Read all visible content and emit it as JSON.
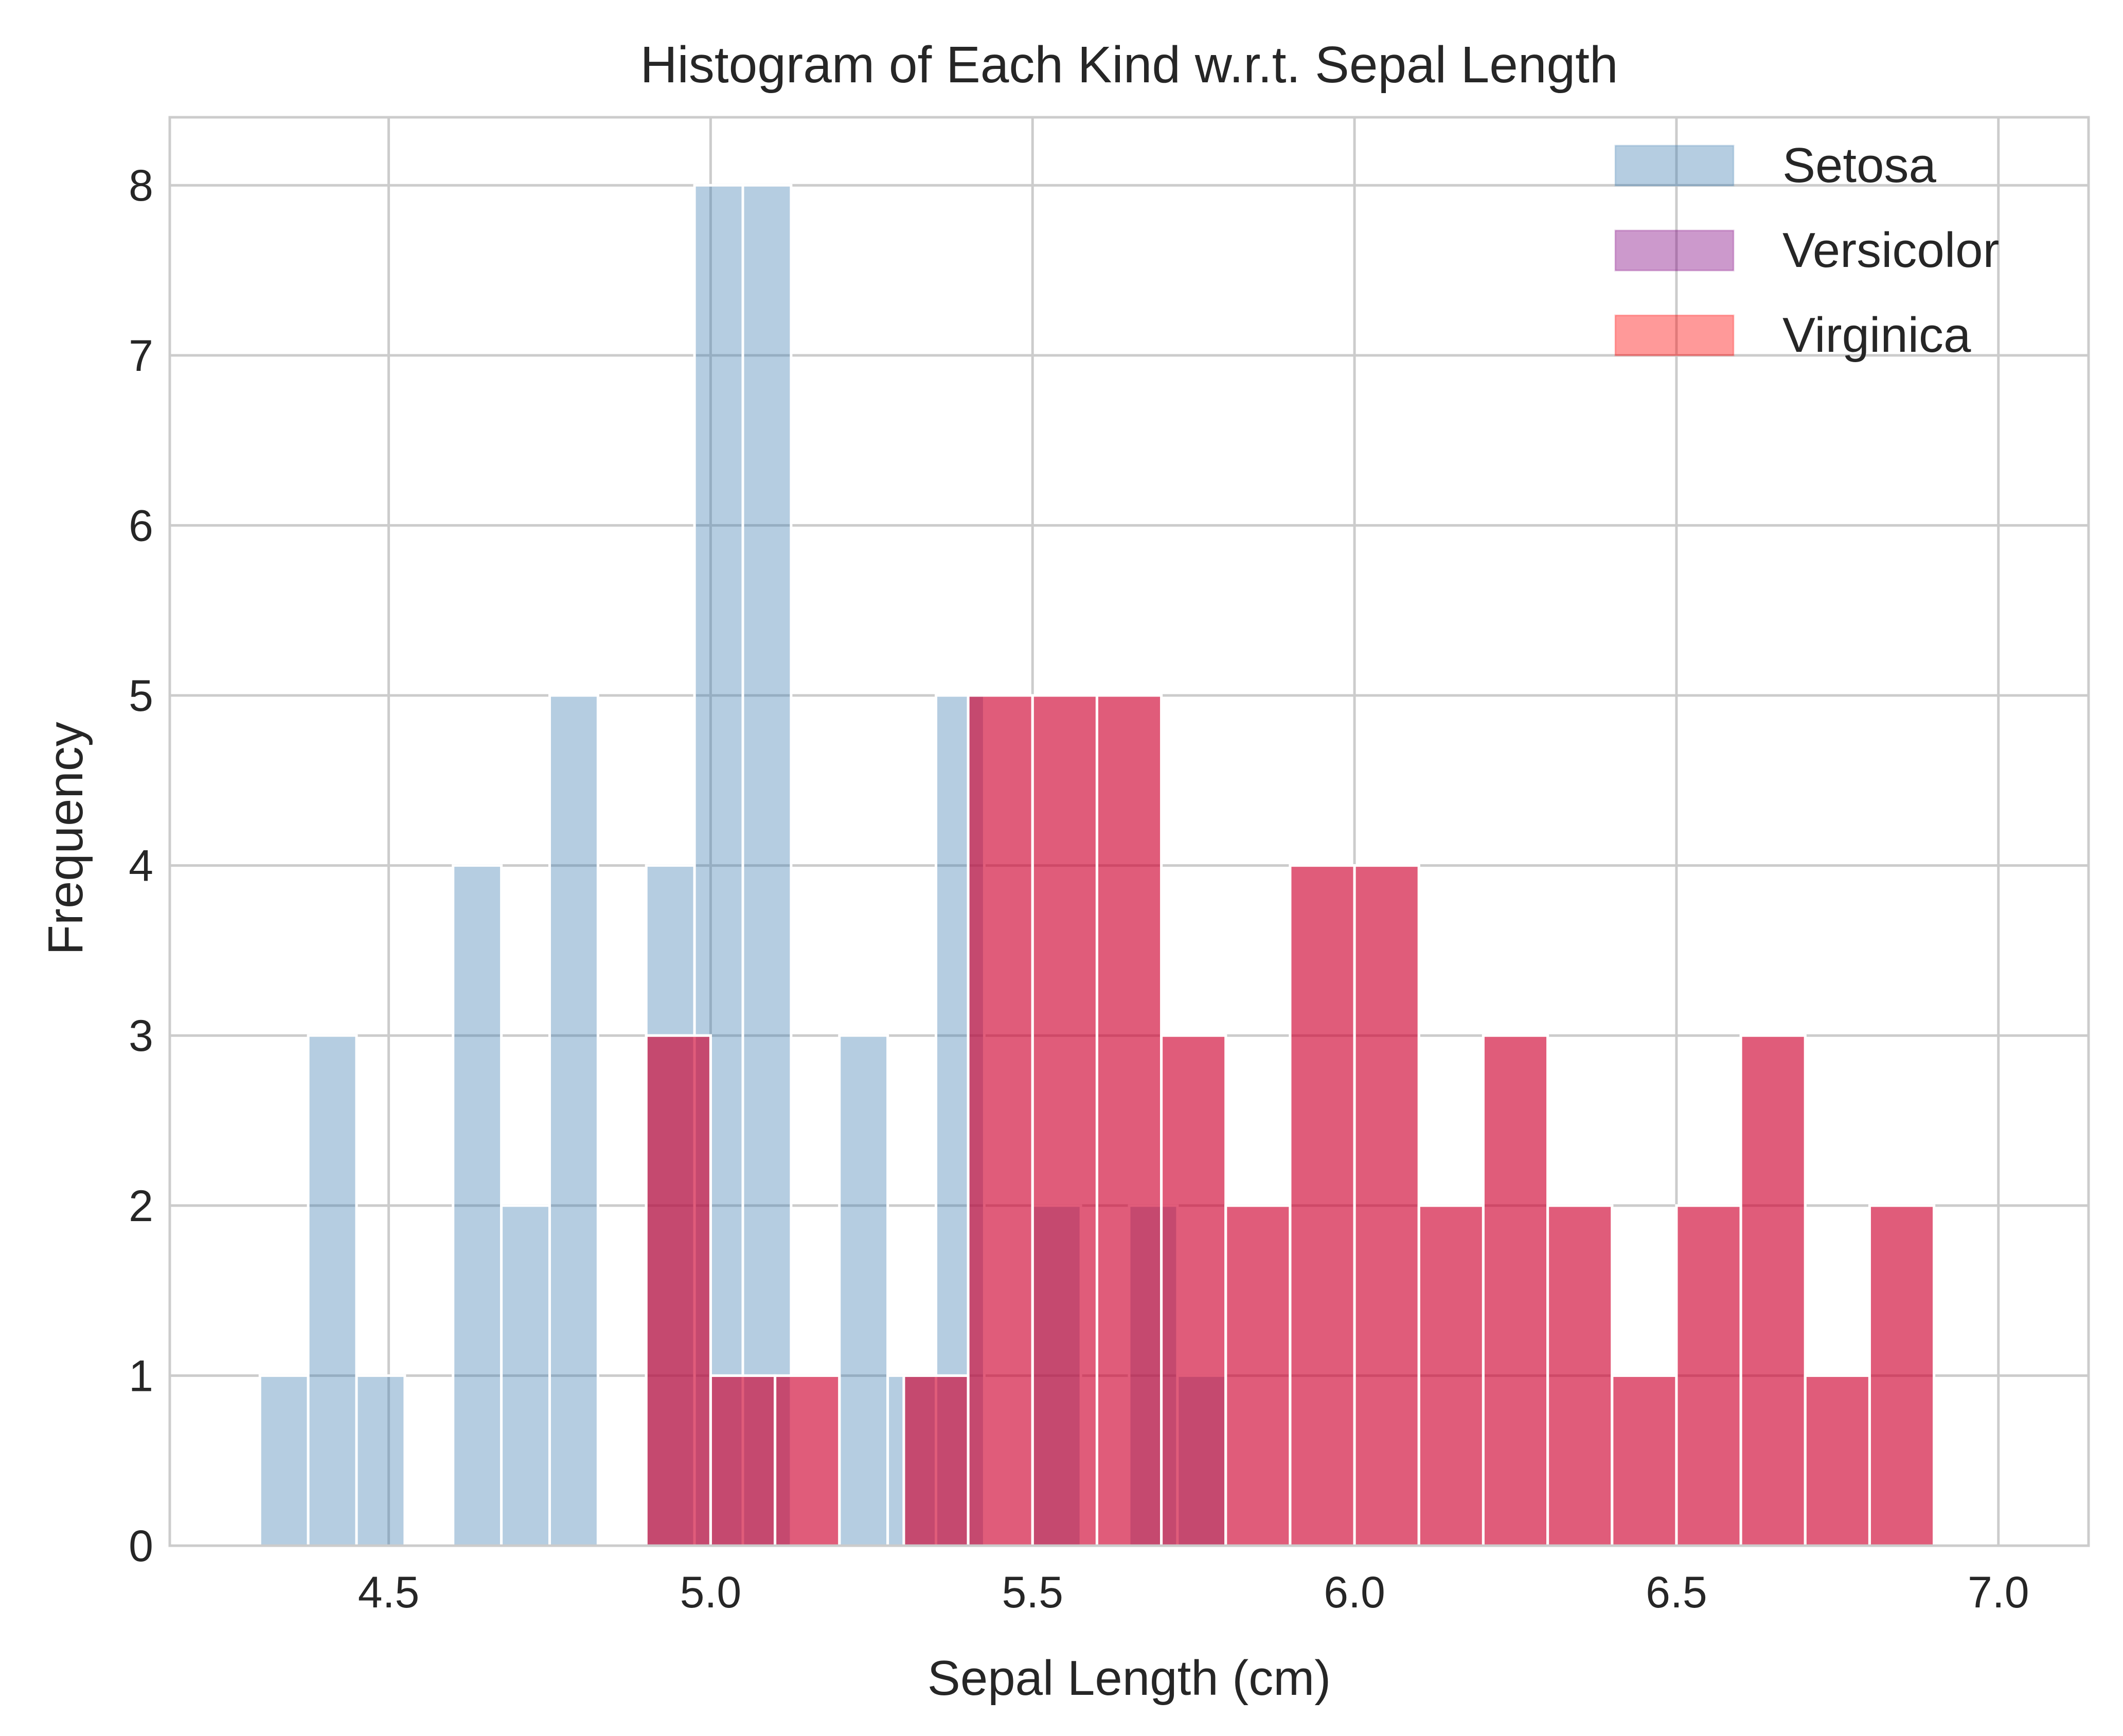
{
  "chart_data": {
    "type": "bar",
    "subtype": "histogram",
    "title": "Histogram of Each Kind w.r.t. Sepal Length",
    "xlabel": "Sepal Length (cm)",
    "ylabel": "Frequency",
    "xlim": [
      4.16,
      7.14
    ],
    "ylim": [
      0,
      8.4
    ],
    "xticks": [
      "4.5",
      "5.0",
      "5.5",
      "6.0",
      "6.5",
      "7.0"
    ],
    "yticks": [
      "0",
      "1",
      "2",
      "3",
      "4",
      "5",
      "6",
      "7",
      "8"
    ],
    "grid": true,
    "legend_position": "top-right",
    "series": [
      {
        "name": "Setosa",
        "color": "#4682b4",
        "opacity": 0.4,
        "bins": [
          {
            "x0": 4.3,
            "x1": 4.375,
            "value": 1
          },
          {
            "x0": 4.375,
            "x1": 4.45,
            "value": 3
          },
          {
            "x0": 4.45,
            "x1": 4.525,
            "value": 1
          },
          {
            "x0": 4.525,
            "x1": 4.6,
            "value": 0
          },
          {
            "x0": 4.6,
            "x1": 4.675,
            "value": 4
          },
          {
            "x0": 4.675,
            "x1": 4.75,
            "value": 2
          },
          {
            "x0": 4.75,
            "x1": 4.825,
            "value": 5
          },
          {
            "x0": 4.825,
            "x1": 4.9,
            "value": 0
          },
          {
            "x0": 4.9,
            "x1": 4.975,
            "value": 4
          },
          {
            "x0": 4.975,
            "x1": 5.05,
            "value": 8
          },
          {
            "x0": 5.05,
            "x1": 5.125,
            "value": 8
          },
          {
            "x0": 5.125,
            "x1": 5.2,
            "value": 0
          },
          {
            "x0": 5.2,
            "x1": 5.275,
            "value": 3
          },
          {
            "x0": 5.275,
            "x1": 5.35,
            "value": 1
          },
          {
            "x0": 5.35,
            "x1": 5.425,
            "value": 5
          },
          {
            "x0": 5.425,
            "x1": 5.5,
            "value": 0
          },
          {
            "x0": 5.5,
            "x1": 5.575,
            "value": 2
          },
          {
            "x0": 5.575,
            "x1": 5.65,
            "value": 0
          },
          {
            "x0": 5.65,
            "x1": 5.725,
            "value": 2
          },
          {
            "x0": 5.725,
            "x1": 5.8,
            "value": 1
          }
        ]
      },
      {
        "name": "Versicolor",
        "color": "#800080",
        "opacity": 0.4,
        "bins": [
          {
            "x0": 4.9,
            "x1": 5.0,
            "value": 3
          },
          {
            "x0": 5.0,
            "x1": 5.1,
            "value": 1
          },
          {
            "x0": 5.1,
            "x1": 5.2,
            "value": 1
          },
          {
            "x0": 5.2,
            "x1": 5.3,
            "value": 0
          },
          {
            "x0": 5.3,
            "x1": 5.4,
            "value": 1
          },
          {
            "x0": 5.4,
            "x1": 5.5,
            "value": 5
          },
          {
            "x0": 5.5,
            "x1": 5.6,
            "value": 5
          },
          {
            "x0": 5.6,
            "x1": 5.7,
            "value": 5
          },
          {
            "x0": 5.7,
            "x1": 5.8,
            "value": 3
          },
          {
            "x0": 5.8,
            "x1": 5.9,
            "value": 2
          },
          {
            "x0": 5.9,
            "x1": 6.0,
            "value": 4
          },
          {
            "x0": 6.0,
            "x1": 6.1,
            "value": 4
          },
          {
            "x0": 6.1,
            "x1": 6.2,
            "value": 2
          },
          {
            "x0": 6.2,
            "x1": 6.3,
            "value": 3
          },
          {
            "x0": 6.3,
            "x1": 6.4,
            "value": 2
          },
          {
            "x0": 6.4,
            "x1": 6.5,
            "value": 1
          },
          {
            "x0": 6.5,
            "x1": 6.6,
            "value": 2
          },
          {
            "x0": 6.6,
            "x1": 6.7,
            "value": 3
          },
          {
            "x0": 6.7,
            "x1": 6.8,
            "value": 1
          },
          {
            "x0": 6.8,
            "x1": 6.9,
            "value": 2
          }
        ]
      },
      {
        "name": "Virginica",
        "color": "#ff0000",
        "opacity": 0.4,
        "bins": [
          {
            "x0": 4.9,
            "x1": 5.0,
            "value": 3
          },
          {
            "x0": 5.0,
            "x1": 5.1,
            "value": 1
          },
          {
            "x0": 5.1,
            "x1": 5.2,
            "value": 1
          },
          {
            "x0": 5.2,
            "x1": 5.3,
            "value": 0
          },
          {
            "x0": 5.3,
            "x1": 5.4,
            "value": 1
          },
          {
            "x0": 5.4,
            "x1": 5.5,
            "value": 5
          },
          {
            "x0": 5.5,
            "x1": 5.6,
            "value": 5
          },
          {
            "x0": 5.6,
            "x1": 5.7,
            "value": 5
          },
          {
            "x0": 5.7,
            "x1": 5.8,
            "value": 3
          },
          {
            "x0": 5.8,
            "x1": 5.9,
            "value": 2
          },
          {
            "x0": 5.9,
            "x1": 6.0,
            "value": 4
          },
          {
            "x0": 6.0,
            "x1": 6.1,
            "value": 4
          },
          {
            "x0": 6.1,
            "x1": 6.2,
            "value": 2
          },
          {
            "x0": 6.2,
            "x1": 6.3,
            "value": 3
          },
          {
            "x0": 6.3,
            "x1": 6.4,
            "value": 2
          },
          {
            "x0": 6.4,
            "x1": 6.5,
            "value": 1
          },
          {
            "x0": 6.5,
            "x1": 6.6,
            "value": 2
          },
          {
            "x0": 6.6,
            "x1": 6.7,
            "value": 3
          },
          {
            "x0": 6.7,
            "x1": 6.8,
            "value": 1
          },
          {
            "x0": 6.8,
            "x1": 6.9,
            "value": 2
          }
        ]
      }
    ]
  }
}
